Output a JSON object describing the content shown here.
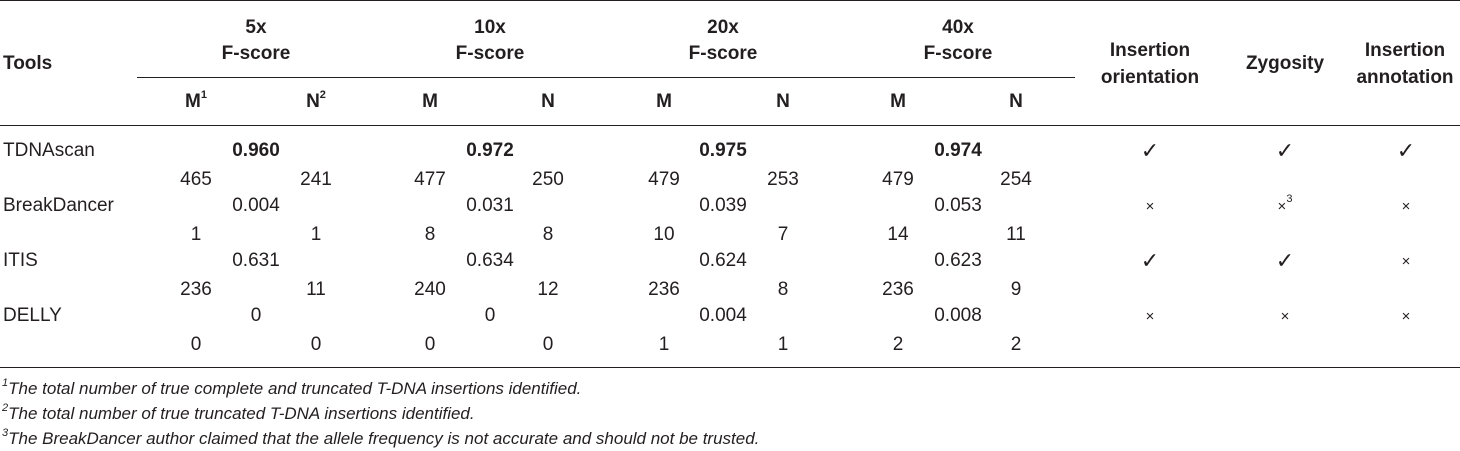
{
  "headers": {
    "tools": "Tools",
    "coverages": [
      {
        "top": "5x",
        "bottom": "F-score"
      },
      {
        "top": "10x",
        "bottom": "F-score"
      },
      {
        "top": "20x",
        "bottom": "F-score"
      },
      {
        "top": "40x",
        "bottom": "F-score"
      }
    ],
    "sub_m": "M",
    "sub_n": "N",
    "sup1": "1",
    "sup2": "2",
    "insertion_orientation": {
      "line1": "Insertion",
      "line2": "orientation"
    },
    "zygosity": "Zygosity",
    "insertion_annotation": {
      "line1": "Insertion",
      "line2": "annotation"
    }
  },
  "rows": [
    {
      "tool": "TDNAscan",
      "fscores": [
        "0.960",
        "0.972",
        "0.975",
        "0.974"
      ],
      "m": [
        "465",
        "477",
        "479",
        "479"
      ],
      "n": [
        "241",
        "250",
        "253",
        "254"
      ],
      "orientation": "✓",
      "zygosity": "✓",
      "zygosity_sup": "",
      "annotation": "✓"
    },
    {
      "tool": "BreakDancer",
      "fscores": [
        "0.004",
        "0.031",
        "0.039",
        "0.053"
      ],
      "m": [
        "1",
        "8",
        "10",
        "14"
      ],
      "n": [
        "1",
        "8",
        "7",
        "11"
      ],
      "orientation": "×",
      "zygosity": "×",
      "zygosity_sup": "3",
      "annotation": "×"
    },
    {
      "tool": "ITIS",
      "fscores": [
        "0.631",
        "0.634",
        "0.624",
        "0.623"
      ],
      "m": [
        "236",
        "240",
        "236",
        "236"
      ],
      "n": [
        "11",
        "12",
        "8",
        "9"
      ],
      "orientation": "✓",
      "zygosity": "✓",
      "zygosity_sup": "",
      "annotation": "×"
    },
    {
      "tool": "DELLY",
      "fscores": [
        "0",
        "0",
        "0.004",
        "0.008"
      ],
      "m": [
        "0",
        "0",
        "1",
        "2"
      ],
      "n": [
        "0",
        "0",
        "1",
        "2"
      ],
      "orientation": "×",
      "zygosity": "×",
      "zygosity_sup": "",
      "annotation": "×"
    }
  ],
  "footnotes": [
    {
      "sup": "1",
      "text": "The total number of true complete and truncated T-DNA insertions identified."
    },
    {
      "sup": "2",
      "text": "The total number of true truncated T-DNA insertions identified."
    },
    {
      "sup": "3",
      "text": "The BreakDancer author claimed that the allele frequency is not accurate and should not be trusted."
    }
  ]
}
